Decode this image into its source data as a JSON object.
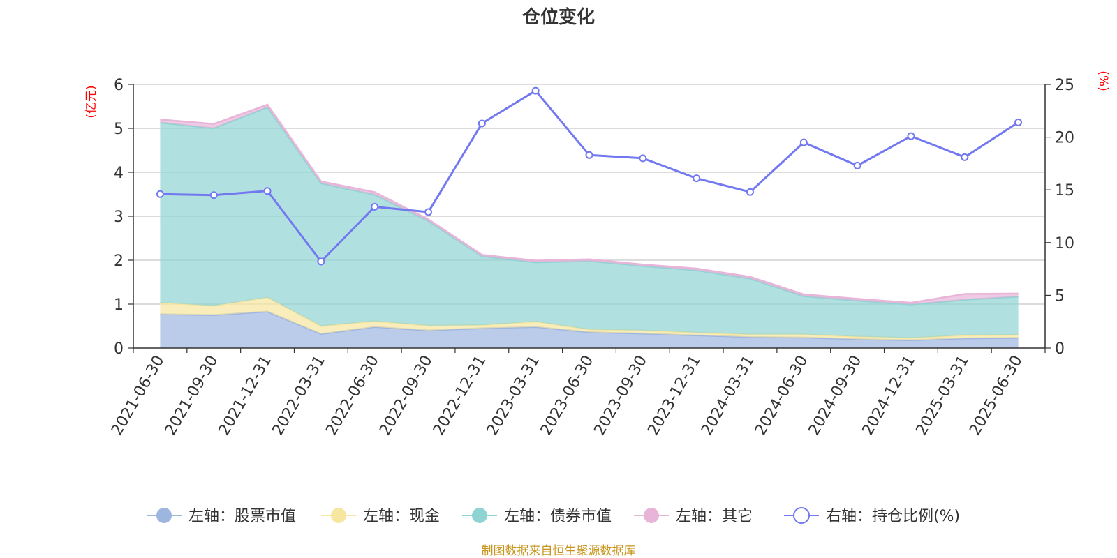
{
  "chart_data": {
    "type": "area",
    "title": "仓位变化",
    "left_unit": "(亿元)",
    "right_unit": "(%)",
    "categories": [
      "2021-06-30",
      "2021-09-30",
      "2021-12-31",
      "2022-03-31",
      "2022-06-30",
      "2022-09-30",
      "2022-12-31",
      "2023-03-31",
      "2023-06-30",
      "2023-09-30",
      "2023-12-31",
      "2024-03-31",
      "2024-06-30",
      "2024-09-30",
      "2024-12-31",
      "2025-03-31",
      "2025-06-30"
    ],
    "left_axis": {
      "min": 0,
      "max": 6,
      "ticks": [
        "0",
        "1",
        "2",
        "3",
        "4",
        "5",
        "6"
      ]
    },
    "right_axis": {
      "min": 0,
      "max": 25,
      "ticks": [
        "0",
        "5",
        "10",
        "15",
        "20",
        "25"
      ]
    },
    "grid": true,
    "legend_position": "bottom",
    "series": [
      {
        "name": "左轴：股票市值",
        "axis": "left",
        "stack": true,
        "color": "#9db6e0",
        "values": [
          0.77,
          0.75,
          0.83,
          0.32,
          0.48,
          0.4,
          0.45,
          0.48,
          0.36,
          0.33,
          0.29,
          0.25,
          0.24,
          0.2,
          0.18,
          0.22,
          0.23
        ]
      },
      {
        "name": "左轴：现金",
        "axis": "left",
        "stack": true,
        "color": "#f7e6a0",
        "values": [
          0.26,
          0.21,
          0.32,
          0.18,
          0.13,
          0.11,
          0.07,
          0.12,
          0.06,
          0.07,
          0.06,
          0.06,
          0.07,
          0.06,
          0.05,
          0.07,
          0.07
        ]
      },
      {
        "name": "左轴：债券市值",
        "axis": "left",
        "stack": true,
        "color": "#8fd3d3",
        "values": [
          4.1,
          4.04,
          4.33,
          3.25,
          2.88,
          2.38,
          1.57,
          1.35,
          1.56,
          1.47,
          1.42,
          1.27,
          0.87,
          0.82,
          0.76,
          0.81,
          0.87
        ]
      },
      {
        "name": "左轴：其它",
        "axis": "left",
        "stack": true,
        "color": "#e8b4d8",
        "values": [
          0.07,
          0.1,
          0.06,
          0.04,
          0.06,
          0.04,
          0.03,
          0.04,
          0.04,
          0.03,
          0.04,
          0.04,
          0.04,
          0.04,
          0.04,
          0.13,
          0.07
        ]
      },
      {
        "name": "右轴：持仓比例(%)",
        "axis": "right",
        "type": "line",
        "color": "#7279f0",
        "values": [
          14.6,
          14.5,
          14.9,
          8.2,
          13.4,
          12.9,
          21.3,
          24.4,
          18.3,
          18.0,
          16.1,
          14.8,
          19.5,
          17.3,
          20.1,
          18.1,
          21.4
        ]
      }
    ]
  },
  "footer": "制图数据来自恒生聚源数据库"
}
